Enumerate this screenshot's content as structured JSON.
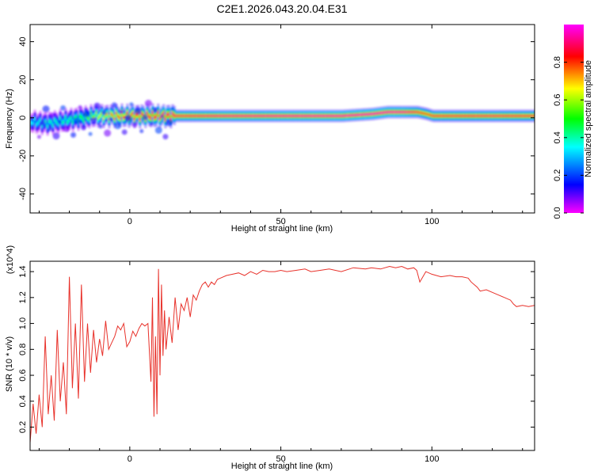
{
  "chart_data": [
    {
      "type": "heatmap",
      "title": "C2E1.2026.043.20.04.E31",
      "xlabel": "Height of straight line (km)",
      "ylabel": "Frequency (Hz)",
      "xlim": [
        -33,
        134
      ],
      "ylim": [
        -50,
        49
      ],
      "xticks": [
        0,
        50,
        100
      ],
      "yticks": [
        -40,
        -20,
        0,
        20,
        40
      ],
      "colorbar": {
        "label": "Normalized spectral amplitude",
        "range": [
          0,
          1
        ],
        "ticks": [
          "0.0",
          "0.2",
          "0.4",
          "0.6",
          "0.8"
        ],
        "tick_values": [
          0,
          0.2,
          0.4,
          0.6,
          0.8
        ],
        "colors": [
          "#ff00ff",
          "#0000ff",
          "#00ffff",
          "#00ff00",
          "#ffff00",
          "#ff0000",
          "#ff00ff"
        ]
      },
      "ridge": {
        "x": [
          -33,
          -28,
          -24,
          -20,
          -16,
          -12,
          -8,
          -4,
          0,
          10,
          20,
          30,
          50,
          70,
          80,
          85,
          90,
          95,
          98,
          100,
          120,
          134
        ],
        "frequency": [
          -2,
          -3,
          -2,
          -1,
          0,
          1,
          1,
          1,
          1,
          1,
          1,
          1,
          1,
          1,
          2,
          3,
          3,
          3,
          2,
          1,
          1,
          1
        ],
        "amplitude": [
          0.35,
          0.4,
          0.4,
          0.45,
          0.5,
          0.6,
          0.7,
          0.8,
          0.85,
          0.9,
          0.92,
          0.95,
          0.97,
          0.98,
          0.99,
          0.98,
          0.97,
          0.9,
          0.85,
          0.9,
          0.92,
          0.9
        ]
      },
      "grid": false
    },
    {
      "type": "line",
      "title": "",
      "xlabel": "Height of straight line (km)",
      "ylabel": "SNR (10 * v/v)",
      "y_multiplier": "(x10^4)",
      "xlim": [
        -33,
        134
      ],
      "ylim": [
        0.02,
        1.48
      ],
      "xticks": [
        0,
        50,
        100
      ],
      "yticks": [
        0.2,
        0.4,
        0.6,
        0.8,
        1.0,
        1.2,
        1.4
      ],
      "ytick_labels": [
        "0.2",
        "0.4",
        "0.6",
        "0.8",
        "1.0",
        "1.2",
        "1.4"
      ],
      "grid": false,
      "series": [
        {
          "color": "#e8312a",
          "x": [
            -33,
            -32,
            -31,
            -30,
            -29,
            -28,
            -27,
            -26,
            -25,
            -24,
            -23,
            -22,
            -21,
            -20,
            -19,
            -18,
            -17,
            -16,
            -15,
            -14,
            -13,
            -12,
            -11,
            -10,
            -9,
            -8,
            -7,
            -6,
            -5,
            -4,
            -3,
            -2,
            -1,
            0,
            1,
            2,
            3,
            4,
            5,
            6,
            7,
            7.5,
            8,
            8.5,
            9,
            9.5,
            10,
            10.5,
            11,
            11.5,
            12,
            13,
            14,
            15,
            16,
            17,
            18,
            19,
            20,
            21,
            22,
            23,
            24,
            25,
            26,
            27,
            28,
            29,
            30,
            32,
            34,
            36,
            38,
            40,
            42,
            44,
            46,
            48,
            50,
            52,
            55,
            58,
            60,
            63,
            66,
            70,
            74,
            78,
            80,
            83,
            86,
            88,
            90,
            92,
            94,
            95,
            96,
            98,
            100,
            103,
            106,
            108,
            110,
            112,
            113,
            114,
            115,
            116,
            118,
            120,
            122,
            124,
            126,
            127,
            128,
            130,
            132,
            134
          ],
          "values": [
            0.08,
            0.38,
            0.15,
            0.45,
            0.2,
            0.9,
            0.3,
            0.6,
            0.25,
            0.95,
            0.4,
            0.7,
            0.3,
            1.36,
            0.5,
            1.0,
            0.42,
            1.3,
            0.55,
            1.0,
            0.62,
            0.95,
            0.7,
            0.88,
            0.75,
            1.02,
            0.8,
            0.85,
            0.9,
            0.98,
            0.95,
            1.0,
            0.82,
            0.86,
            0.94,
            0.9,
            0.96,
            1.0,
            0.98,
            1.0,
            0.55,
            1.2,
            0.28,
            0.9,
            0.3,
            1.42,
            0.6,
            1.3,
            0.75,
            1.1,
            0.8,
            1.05,
            0.85,
            1.2,
            0.95,
            1.15,
            1.1,
            1.2,
            1.05,
            1.22,
            1.18,
            1.25,
            1.3,
            1.32,
            1.28,
            1.32,
            1.3,
            1.34,
            1.35,
            1.37,
            1.38,
            1.39,
            1.37,
            1.4,
            1.38,
            1.41,
            1.4,
            1.4,
            1.41,
            1.4,
            1.41,
            1.42,
            1.4,
            1.41,
            1.42,
            1.4,
            1.43,
            1.42,
            1.43,
            1.42,
            1.44,
            1.43,
            1.44,
            1.42,
            1.43,
            1.41,
            1.32,
            1.4,
            1.38,
            1.36,
            1.37,
            1.36,
            1.36,
            1.35,
            1.32,
            1.3,
            1.28,
            1.25,
            1.26,
            1.24,
            1.22,
            1.2,
            1.18,
            1.15,
            1.13,
            1.14,
            1.13,
            1.14
          ]
        }
      ]
    }
  ]
}
